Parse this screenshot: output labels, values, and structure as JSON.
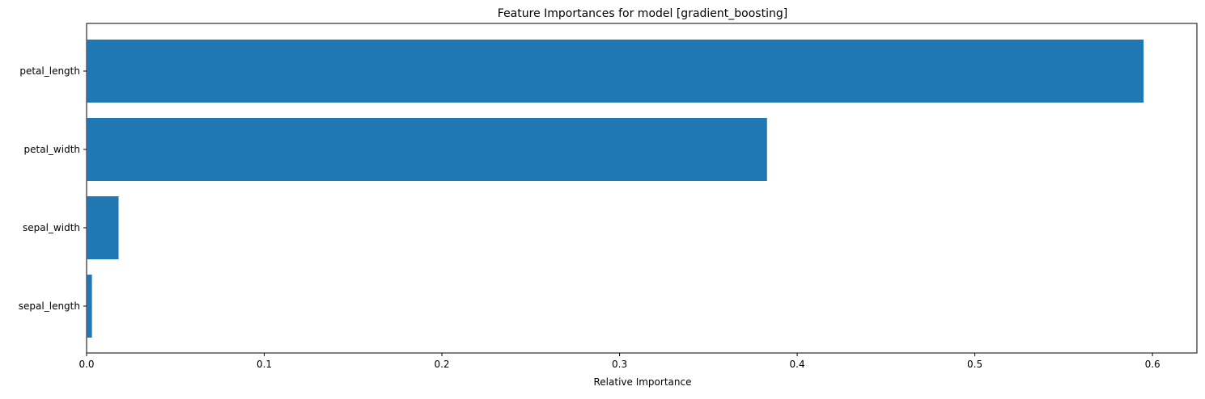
{
  "chart_data": {
    "type": "bar",
    "orientation": "horizontal",
    "title": "Feature Importances for model [gradient_boosting]",
    "xlabel": "Relative Importance",
    "ylabel": "",
    "categories": [
      "sepal_length",
      "sepal_width",
      "petal_width",
      "petal_length"
    ],
    "values": [
      0.003,
      0.018,
      0.383,
      0.595
    ],
    "xlim": [
      0,
      0.625
    ],
    "xticks": [
      0.0,
      0.1,
      0.2,
      0.3,
      0.4,
      0.5,
      0.6
    ],
    "xtick_labels": [
      "0.0",
      "0.1",
      "0.2",
      "0.3",
      "0.4",
      "0.5",
      "0.6"
    ],
    "grid": false,
    "legend": false,
    "bar_color": "#1f77b4"
  }
}
